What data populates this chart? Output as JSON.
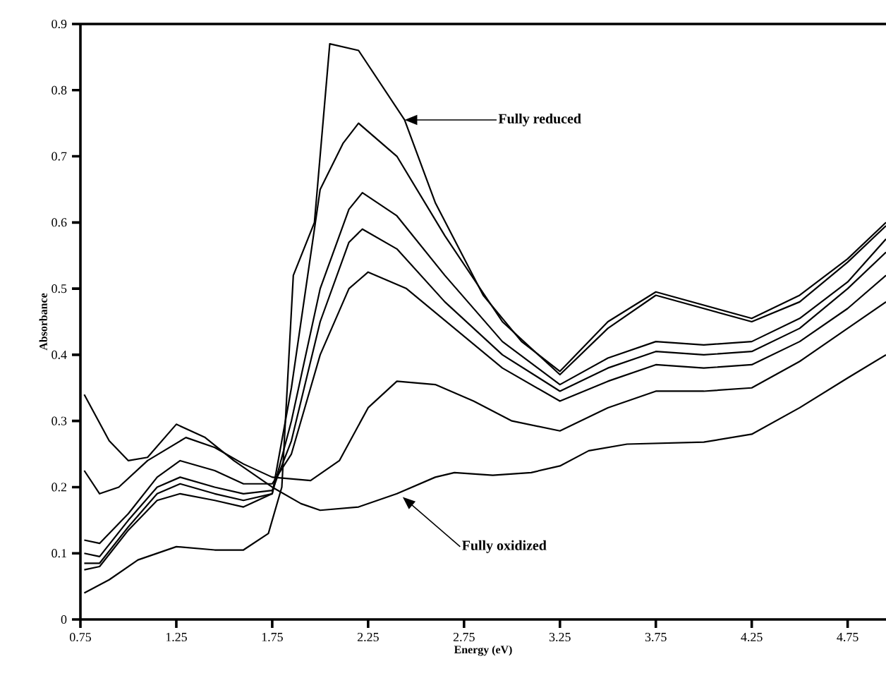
{
  "chart_data": {
    "type": "line",
    "xlabel": "Energy (eV)",
    "ylabel": "Absorbance",
    "xlim": [
      0.75,
      4.95
    ],
    "ylim": [
      0,
      0.9
    ],
    "xticks": [
      0.75,
      1.25,
      1.75,
      2.25,
      2.75,
      3.25,
      3.75,
      4.25,
      4.75
    ],
    "yticks": [
      0,
      0.1,
      0.2,
      0.3,
      0.4,
      0.5,
      0.6,
      0.7,
      0.8,
      0.9
    ],
    "marker": "none",
    "line_style": "solid",
    "series": [
      {
        "color": "#000000",
        "x": [
          0.77,
          0.9,
          1.05,
          1.25,
          1.45,
          1.6,
          1.73,
          1.8,
          1.86,
          1.97,
          2.05,
          2.2,
          2.44,
          2.6,
          2.85,
          3.05,
          3.25,
          3.5,
          3.75,
          4.0,
          4.25,
          4.5,
          4.75,
          4.95
        ],
        "values": [
          0.04,
          0.06,
          0.09,
          0.11,
          0.105,
          0.105,
          0.13,
          0.2,
          0.52,
          0.6,
          0.87,
          0.86,
          0.755,
          0.63,
          0.49,
          0.42,
          0.375,
          0.45,
          0.495,
          0.475,
          0.455,
          0.49,
          0.545,
          0.6
        ]
      },
      {
        "color": "#000000",
        "x": [
          0.77,
          0.85,
          1.0,
          1.15,
          1.27,
          1.45,
          1.6,
          1.75,
          1.85,
          2.0,
          2.12,
          2.2,
          2.4,
          2.65,
          2.95,
          3.25,
          3.5,
          3.75,
          4.0,
          4.25,
          4.5,
          4.75,
          4.95
        ],
        "values": [
          0.075,
          0.08,
          0.135,
          0.18,
          0.19,
          0.18,
          0.17,
          0.19,
          0.35,
          0.65,
          0.72,
          0.75,
          0.7,
          0.58,
          0.45,
          0.37,
          0.44,
          0.49,
          0.47,
          0.45,
          0.48,
          0.54,
          0.595
        ]
      },
      {
        "color": "#000000",
        "x": [
          0.77,
          0.85,
          1.0,
          1.15,
          1.27,
          1.45,
          1.6,
          1.75,
          1.85,
          2.0,
          2.15,
          2.22,
          2.4,
          2.65,
          2.95,
          3.25,
          3.5,
          3.75,
          4.0,
          4.25,
          4.5,
          4.75,
          4.95
        ],
        "values": [
          0.085,
          0.085,
          0.14,
          0.19,
          0.205,
          0.19,
          0.18,
          0.19,
          0.3,
          0.5,
          0.62,
          0.645,
          0.61,
          0.52,
          0.42,
          0.355,
          0.395,
          0.42,
          0.415,
          0.42,
          0.455,
          0.51,
          0.575
        ]
      },
      {
        "color": "#000000",
        "x": [
          0.77,
          0.85,
          1.0,
          1.15,
          1.27,
          1.45,
          1.6,
          1.75,
          1.85,
          2.0,
          2.15,
          2.22,
          2.4,
          2.65,
          2.95,
          3.25,
          3.5,
          3.75,
          4.0,
          4.25,
          4.5,
          4.75,
          4.95
        ],
        "values": [
          0.1,
          0.095,
          0.15,
          0.2,
          0.215,
          0.2,
          0.19,
          0.195,
          0.27,
          0.45,
          0.57,
          0.59,
          0.56,
          0.48,
          0.4,
          0.345,
          0.38,
          0.405,
          0.4,
          0.405,
          0.44,
          0.5,
          0.555
        ]
      },
      {
        "color": "#000000",
        "x": [
          0.77,
          0.85,
          1.0,
          1.15,
          1.27,
          1.45,
          1.6,
          1.75,
          1.85,
          2.0,
          2.15,
          2.25,
          2.45,
          2.7,
          2.95,
          3.25,
          3.5,
          3.75,
          4.0,
          4.25,
          4.5,
          4.75,
          4.95
        ],
        "values": [
          0.12,
          0.115,
          0.16,
          0.215,
          0.24,
          0.225,
          0.205,
          0.205,
          0.25,
          0.4,
          0.5,
          0.525,
          0.5,
          0.44,
          0.38,
          0.33,
          0.36,
          0.385,
          0.38,
          0.385,
          0.42,
          0.47,
          0.52
        ]
      },
      {
        "color": "#000000",
        "x": [
          0.77,
          0.85,
          0.95,
          1.1,
          1.3,
          1.45,
          1.6,
          1.75,
          1.95,
          2.1,
          2.25,
          2.4,
          2.6,
          2.8,
          3.0,
          3.25,
          3.5,
          3.75,
          4.0,
          4.25,
          4.5,
          4.75,
          4.95
        ],
        "values": [
          0.225,
          0.19,
          0.2,
          0.24,
          0.275,
          0.26,
          0.235,
          0.215,
          0.21,
          0.24,
          0.32,
          0.36,
          0.355,
          0.33,
          0.3,
          0.285,
          0.32,
          0.345,
          0.345,
          0.35,
          0.39,
          0.44,
          0.48
        ]
      },
      {
        "color": "#000000",
        "x": [
          0.77,
          0.9,
          1.0,
          1.1,
          1.25,
          1.4,
          1.55,
          1.75,
          1.9,
          2.0,
          2.2,
          2.4,
          2.6,
          2.7,
          2.9,
          3.1,
          3.25,
          3.4,
          3.6,
          4.0,
          4.25,
          4.5,
          4.75,
          4.95
        ],
        "values": [
          0.34,
          0.27,
          0.24,
          0.245,
          0.295,
          0.275,
          0.24,
          0.2,
          0.175,
          0.165,
          0.17,
          0.19,
          0.215,
          0.222,
          0.218,
          0.222,
          0.232,
          0.255,
          0.265,
          0.268,
          0.28,
          0.32,
          0.365,
          0.4
        ]
      }
    ],
    "annotations": [
      {
        "text": "Fully reduced",
        "x": 2.44,
        "y": 0.755
      },
      {
        "text": "Fully oxidized",
        "x": 2.43,
        "y": 0.185
      }
    ]
  }
}
